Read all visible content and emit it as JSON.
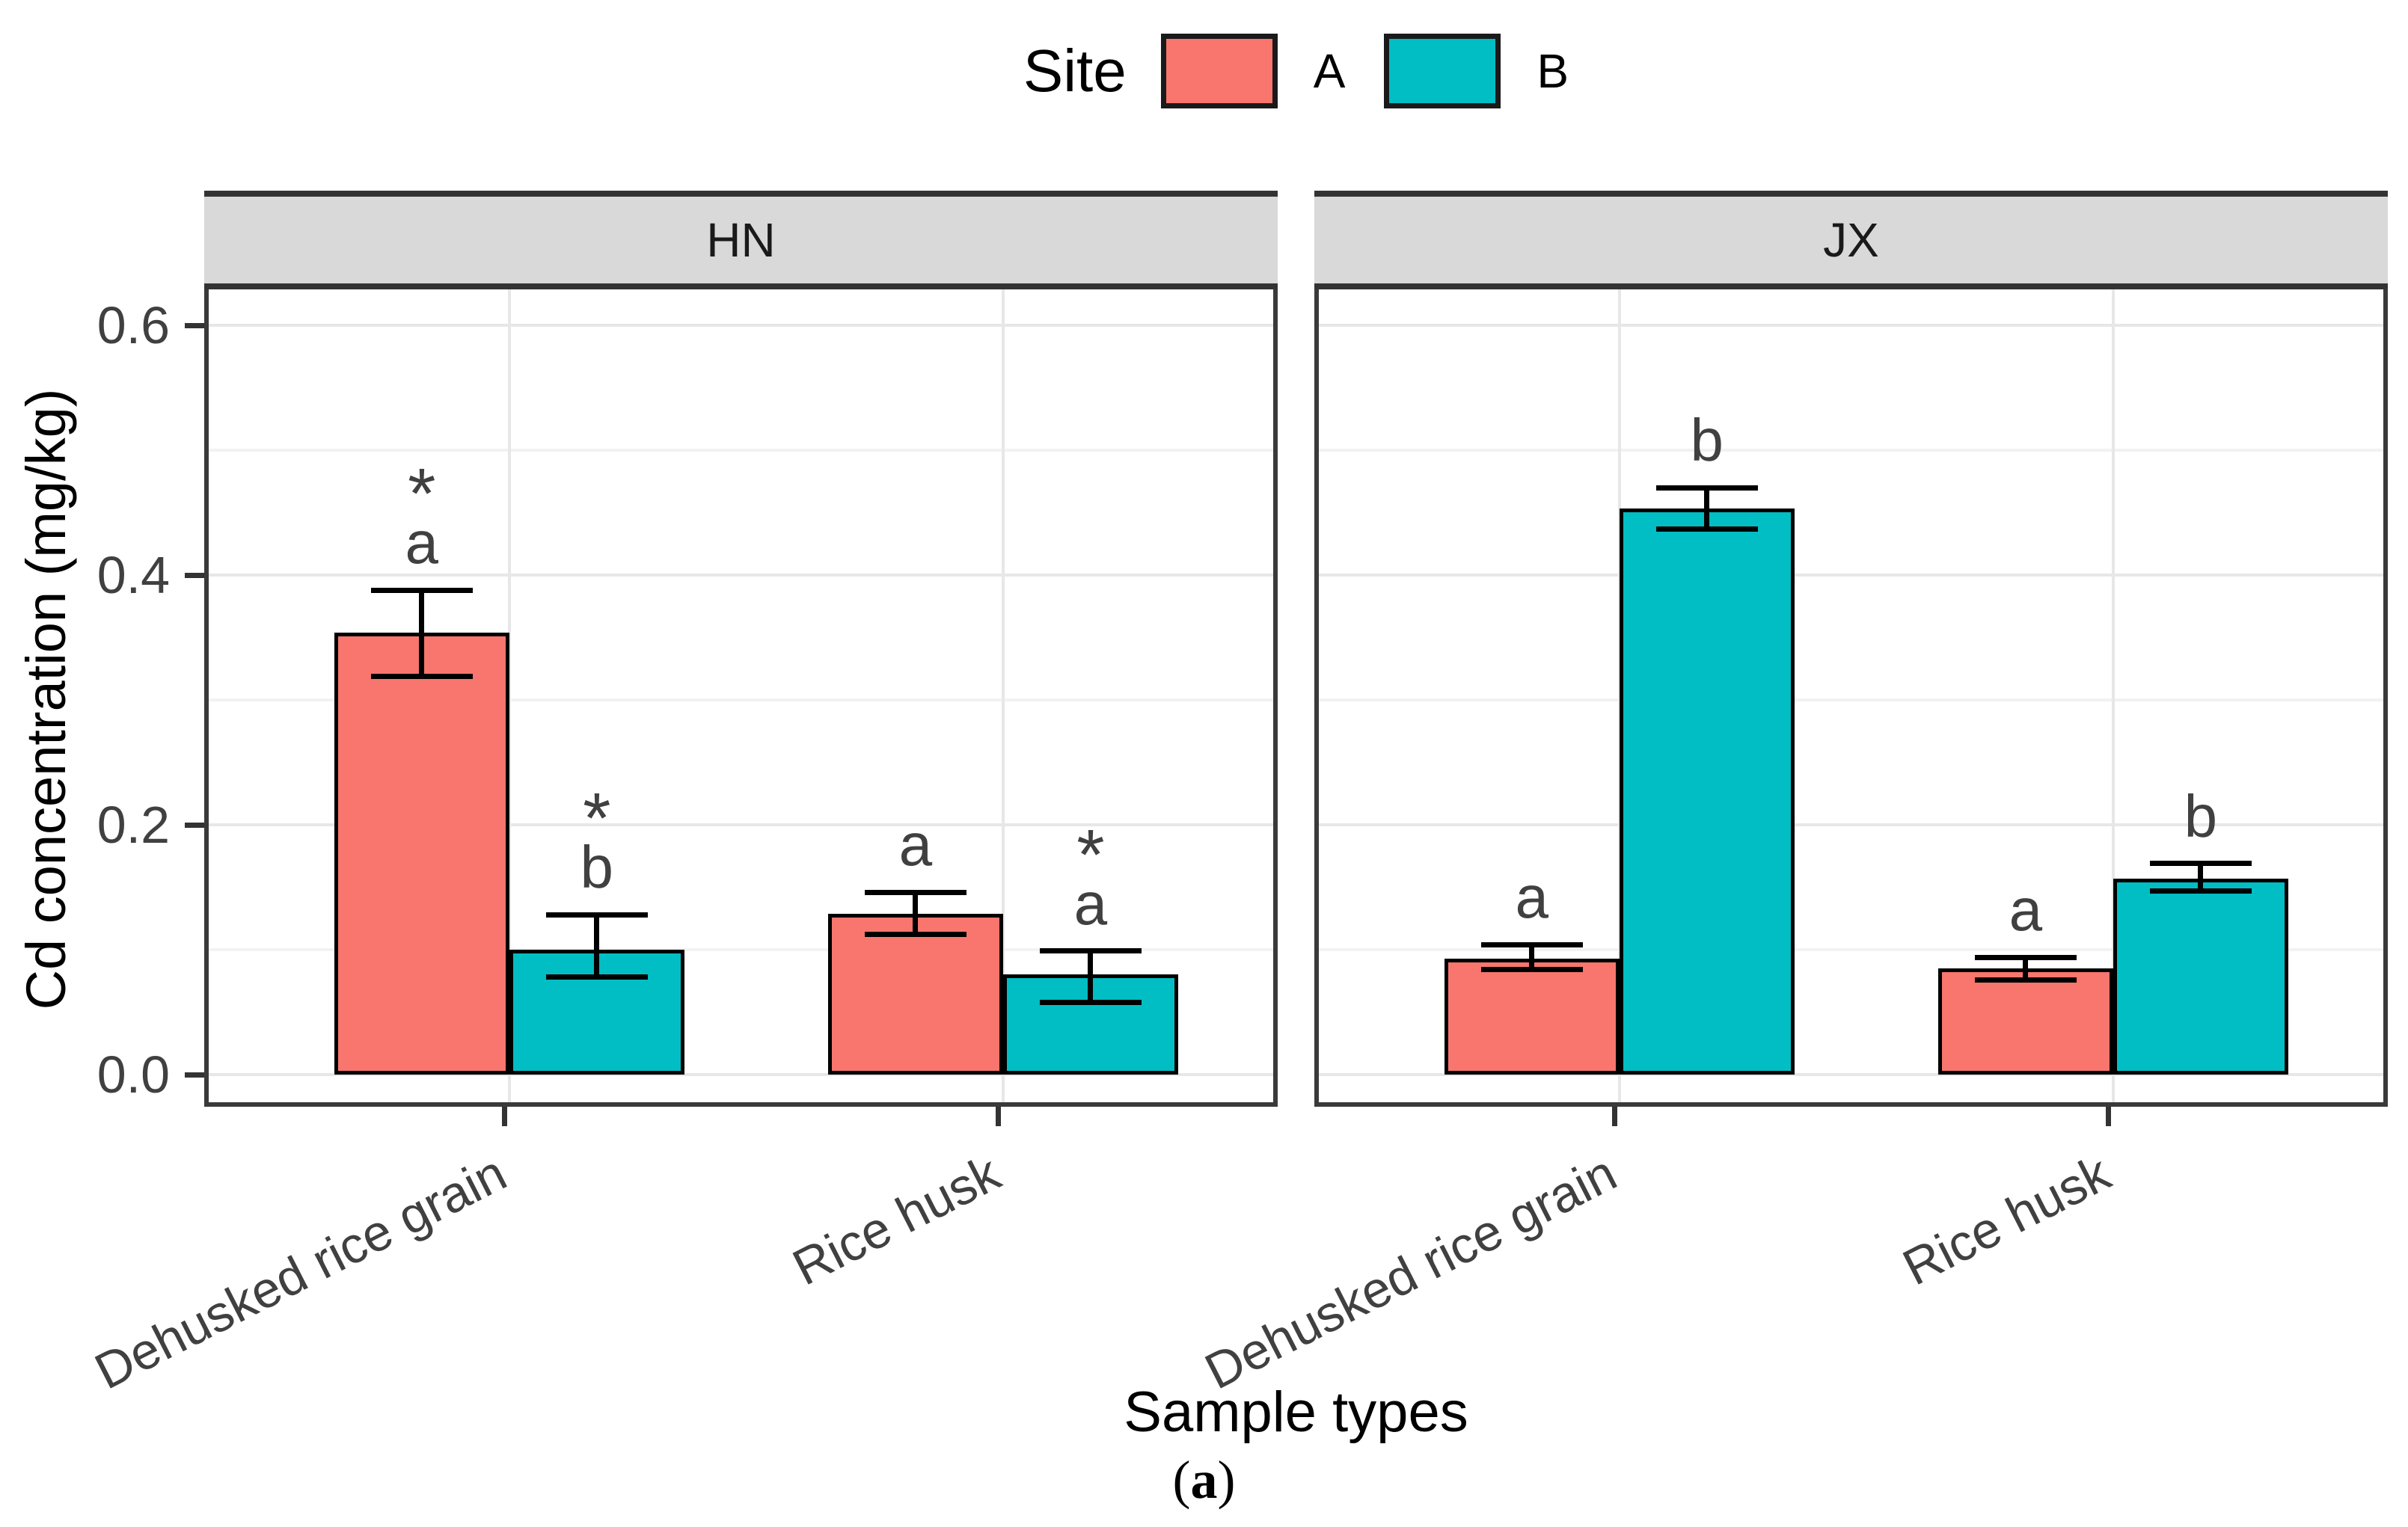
{
  "figure": {
    "caption": {
      "open": "(",
      "letter": "a",
      "close": ")"
    }
  },
  "legend": {
    "title": "Site",
    "entries": [
      {
        "label": "A",
        "color": "#F8766D"
      },
      {
        "label": "B",
        "color": "#00BEC4"
      }
    ]
  },
  "axes": {
    "y_title": "Cd concentration (mg/kg)",
    "x_title": "Sample types",
    "y_tick_labels": [
      "0.0",
      "0.2",
      "0.4",
      "0.6"
    ],
    "y_tick_values": [
      0,
      0.2,
      0.4,
      0.6
    ],
    "gridline_values": [
      0,
      0.1,
      0.2,
      0.3,
      0.4,
      0.5,
      0.6
    ]
  },
  "colors": {
    "bar_outline": "#000000",
    "panel_border": "#3a3a3a",
    "strip_bg": "#D9D9D9",
    "strip_border": "#333333",
    "grid_major": "#E7E7E7",
    "grid_minor": "#F2F2F2",
    "tick_mark": "#333333",
    "tick_label": "#404040",
    "annotation": "#404040",
    "site_a": "#F8766D",
    "site_b": "#00BEC4"
  },
  "chart_data": {
    "type": "bar",
    "title": "",
    "xlabel": "Sample types",
    "ylabel": "Cd concentration (mg/kg)",
    "ylim": [
      0,
      0.63
    ],
    "grid": "on",
    "legend_position": "top-center",
    "error_bars": true,
    "facets": [
      {
        "label": "HN",
        "categories": [
          "Dehusked rice grain",
          "Rice husk"
        ],
        "series": [
          {
            "name": "A",
            "color": "#F8766D",
            "values": [
              0.354,
              0.129
            ],
            "err_low": [
              0.319,
              0.112
            ],
            "err_high": [
              0.388,
              0.146
            ],
            "sig_letters": [
              "a",
              "a"
            ],
            "asterisk": [
              true,
              false
            ]
          },
          {
            "name": "B",
            "color": "#00BEC4",
            "values": [
              0.1,
              0.08
            ],
            "err_low": [
              0.078,
              0.058
            ],
            "err_high": [
              0.128,
              0.099
            ],
            "sig_letters": [
              "b",
              "a"
            ],
            "asterisk": [
              true,
              true
            ]
          }
        ]
      },
      {
        "label": "JX",
        "categories": [
          "Dehusked rice grain",
          "Rice husk"
        ],
        "series": [
          {
            "name": "A",
            "color": "#F8766D",
            "values": [
              0.093,
              0.085
            ],
            "err_low": [
              0.084,
              0.076
            ],
            "err_high": [
              0.104,
              0.094
            ],
            "sig_letters": [
              "a",
              "a"
            ],
            "asterisk": [
              false,
              false
            ]
          },
          {
            "name": "B",
            "color": "#00BEC4",
            "values": [
              0.453,
              0.157
            ],
            "err_low": [
              0.437,
              0.147
            ],
            "err_high": [
              0.47,
              0.169
            ],
            "sig_letters": [
              "b",
              "b"
            ],
            "asterisk": [
              false,
              false
            ]
          }
        ]
      }
    ]
  }
}
